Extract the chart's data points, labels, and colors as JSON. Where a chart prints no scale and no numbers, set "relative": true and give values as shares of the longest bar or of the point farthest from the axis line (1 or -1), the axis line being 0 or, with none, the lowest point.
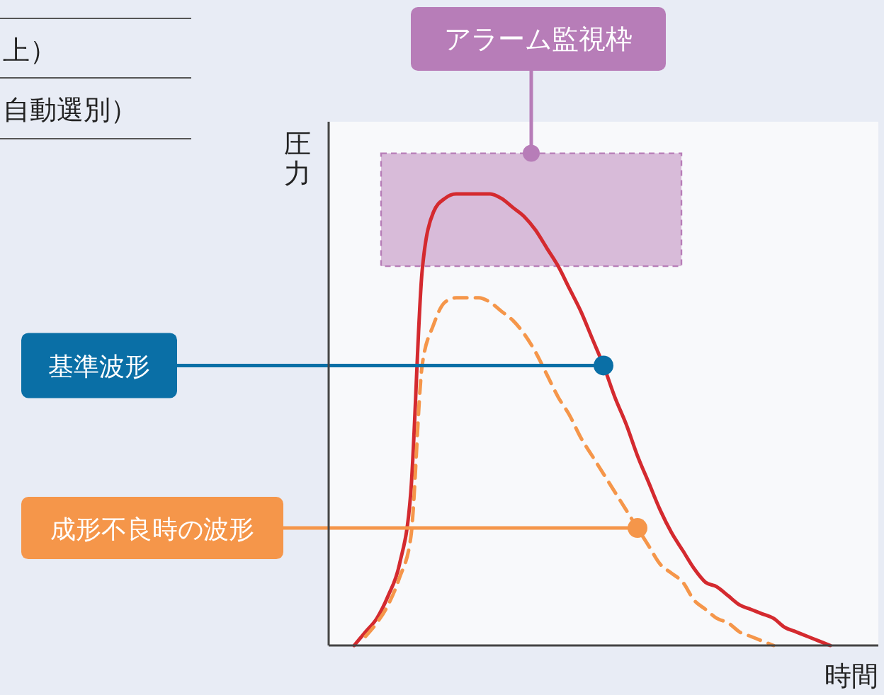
{
  "chart_data": {
    "type": "line",
    "relative": true,
    "xlabel": "時間",
    "ylabel": "圧力",
    "categories": [
      null,
      null,
      null,
      null,
      null,
      null,
      null,
      null,
      null,
      null,
      null,
      null,
      null,
      null,
      null,
      null,
      null,
      null,
      null,
      null,
      null,
      null,
      null,
      null,
      null,
      null,
      null,
      null,
      null,
      null,
      null,
      null,
      null,
      null,
      null,
      null,
      null,
      null,
      null,
      null,
      null,
      null,
      null,
      null
    ],
    "series": [
      {
        "name": "基準波形",
        "color": "#d42a2f",
        "line_style": "solid",
        "values": [
          0,
          0.03,
          0.06,
          0.11,
          0.18,
          0.34,
          0.83,
          0.96,
          0.99,
          1.0,
          1.0,
          1.0,
          1.0,
          0.99,
          0.97,
          0.95,
          0.92,
          0.88,
          0.84,
          0.79,
          0.74,
          0.68,
          0.62,
          0.55,
          0.49,
          0.42,
          0.36,
          0.3,
          0.25,
          0.21,
          0.17,
          0.14,
          0.13,
          0.11,
          0.09,
          0.08,
          0.07,
          0.06,
          0.04,
          0.03,
          0.02,
          0.01,
          0,
          null
        ]
      },
      {
        "name": "成形不良時の波形",
        "color": "#f5964a",
        "line_style": "dashed",
        "values": [
          null,
          0.02,
          0.05,
          0.09,
          0.15,
          0.24,
          0.62,
          0.71,
          0.76,
          0.77,
          0.77,
          0.77,
          0.76,
          0.74,
          0.72,
          0.69,
          0.65,
          0.6,
          0.55,
          0.51,
          0.46,
          0.42,
          0.38,
          0.34,
          0.3,
          0.26,
          0.22,
          0.18,
          0.16,
          0.14,
          0.1,
          0.08,
          0.06,
          0.05,
          0.03,
          0.02,
          0.01,
          0,
          null,
          null,
          null,
          null,
          null,
          null
        ]
      }
    ],
    "bands": [
      {
        "axis": "y",
        "from": 0.84,
        "to": 1.09,
        "label": "アラーム監視枠",
        "color": "#b77db8"
      }
    ],
    "annotations": [
      "上）",
      "自動選別）"
    ]
  }
}
